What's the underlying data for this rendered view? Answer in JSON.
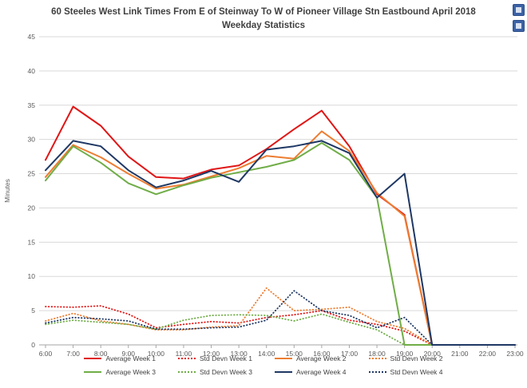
{
  "page": {
    "corner_buttons": [
      {
        "icon": "blue-tile-icon"
      },
      {
        "icon": "blue-tile-icon"
      }
    ]
  },
  "chart_data": {
    "type": "line",
    "title": "60 Steeles West Link Times From E of Steinway To W of Pioneer Village Stn Eastbound April 2018 Weekday Statistics",
    "ylabel": "Minutes",
    "xlabel": "",
    "ylim": [
      0,
      45
    ],
    "yticks": [
      0,
      5,
      10,
      15,
      20,
      25,
      30,
      35,
      40,
      45
    ],
    "grid": true,
    "gridline_color": "#d9d9d9",
    "axis_color": "#a6a6a6",
    "tick_label_color": "#595959",
    "legend_position": "bottom",
    "categories": [
      "6:00",
      "7:00",
      "8:00",
      "9:00",
      "10:00",
      "11:00",
      "12:00",
      "13:00",
      "14:00",
      "15:00",
      "16:00",
      "17:00",
      "18:00",
      "19:00",
      "20:00",
      "21:00",
      "22:00",
      "23:00"
    ],
    "series": [
      {
        "name": "Average Week 1",
        "color": "#e01616",
        "line_style": "solid",
        "values": [
          27,
          34.8,
          32,
          27.5,
          24.5,
          24.3,
          25.6,
          26.2,
          28.6,
          31.5,
          34.2,
          29,
          22,
          19,
          0,
          0,
          0,
          0
        ]
      },
      {
        "name": "Std Devn Week 1",
        "color": "#e01616",
        "line_style": "dotted",
        "values": [
          5.6,
          5.5,
          5.7,
          4.5,
          2.5,
          3.0,
          3.4,
          3.2,
          4.0,
          4.4,
          5.0,
          3.6,
          3.0,
          2.0,
          0,
          0,
          0,
          0
        ]
      },
      {
        "name": "Average Week 2",
        "color": "#ed7d31",
        "line_style": "solid",
        "values": [
          24.5,
          29.2,
          27.4,
          25.0,
          22.8,
          23.4,
          24.6,
          25.8,
          27.6,
          27.2,
          31.2,
          28.3,
          22.2,
          18.8,
          0,
          0,
          0,
          0
        ]
      },
      {
        "name": "Std Devn Week 2",
        "color": "#ed7d31",
        "line_style": "dotted",
        "values": [
          3.5,
          4.6,
          3.5,
          3.0,
          2.2,
          2.2,
          2.6,
          2.8,
          8.3,
          5.0,
          5.2,
          5.5,
          3.4,
          2.4,
          0,
          0,
          0,
          0
        ]
      },
      {
        "name": "Average Week 3",
        "color": "#70ad47",
        "line_style": "solid",
        "values": [
          24.0,
          29.0,
          26.6,
          23.6,
          22.0,
          23.3,
          24.4,
          25.2,
          26.0,
          27.0,
          29.5,
          27.0,
          21.5,
          0,
          0,
          0,
          0,
          0
        ]
      },
      {
        "name": "Std Devn Week 3",
        "color": "#70ad47",
        "line_style": "dotted",
        "values": [
          3.0,
          3.6,
          3.3,
          3.0,
          2.3,
          3.6,
          4.3,
          4.4,
          4.3,
          3.5,
          4.5,
          3.3,
          2.2,
          0,
          0,
          0,
          0,
          0
        ]
      },
      {
        "name": "Average Week 4",
        "color": "#1f3864",
        "line_style": "solid",
        "values": [
          25.5,
          29.8,
          29.0,
          25.5,
          23.0,
          24.0,
          25.4,
          23.8,
          28.5,
          29.0,
          29.8,
          28.0,
          21.5,
          25.0,
          0,
          0,
          0,
          0
        ]
      },
      {
        "name": "Std Devn Week 4",
        "color": "#1f3864",
        "line_style": "dotted",
        "values": [
          3.2,
          4.0,
          3.8,
          3.5,
          2.3,
          2.3,
          2.5,
          2.6,
          3.6,
          7.9,
          5.0,
          4.3,
          2.5,
          4.0,
          0,
          0,
          0,
          0
        ]
      }
    ]
  }
}
